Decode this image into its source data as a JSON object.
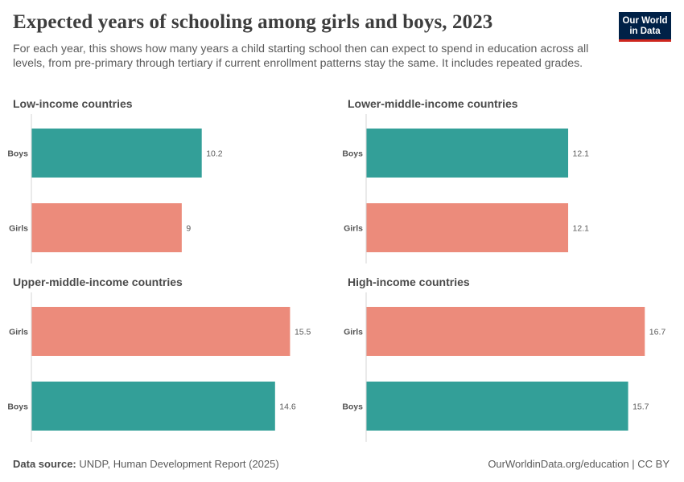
{
  "header": {
    "title": "Expected years of schooling among girls and boys, 2023",
    "subtitle": "For each year, this shows how many years a child starting school then can expect to spend in education across all levels, from pre-primary through tertiary if current enrollment patterns stay the same. It includes repeated grades.",
    "logo_line1": "Our World",
    "logo_line2": "in Data"
  },
  "footer": {
    "source_label": "Data source:",
    "source_text": "UNDP, Human Development Report (2025)",
    "right_text": "OurWorldinData.org/education | CC BY"
  },
  "colors": {
    "Boys": "#339f98",
    "Girls": "#ec8b7b"
  },
  "chart_data": [
    {
      "type": "bar",
      "orientation": "horizontal",
      "title": "Low-income countries",
      "categories": [
        "Boys",
        "Girls"
      ],
      "values": [
        10.2,
        9
      ],
      "value_labels": [
        "10.2",
        "9"
      ],
      "xlim": [
        0,
        17
      ]
    },
    {
      "type": "bar",
      "orientation": "horizontal",
      "title": "Lower-middle-income countries",
      "categories": [
        "Boys",
        "Girls"
      ],
      "values": [
        12.1,
        12.1
      ],
      "value_labels": [
        "12.1",
        "12.1"
      ],
      "xlim": [
        0,
        17
      ]
    },
    {
      "type": "bar",
      "orientation": "horizontal",
      "title": "Upper-middle-income countries",
      "categories": [
        "Girls",
        "Boys"
      ],
      "values": [
        15.5,
        14.6
      ],
      "value_labels": [
        "15.5",
        "14.6"
      ],
      "xlim": [
        0,
        17
      ]
    },
    {
      "type": "bar",
      "orientation": "horizontal",
      "title": "High-income countries",
      "categories": [
        "Girls",
        "Boys"
      ],
      "values": [
        16.7,
        15.7
      ],
      "value_labels": [
        "16.7",
        "15.7"
      ],
      "xlim": [
        0,
        17
      ]
    }
  ]
}
